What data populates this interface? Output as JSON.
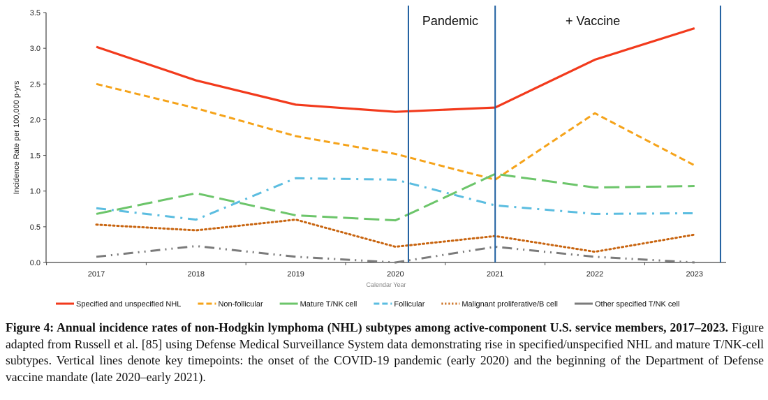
{
  "chart_data": {
    "type": "line",
    "ylabel": "Incidence Rate per 100,000 p-yrs",
    "xlabel": "Calendar Year",
    "ylim": [
      0,
      3.5
    ],
    "yticks": [
      "0.0",
      "0.5",
      "1.0",
      "1.5",
      "2.0",
      "2.5",
      "3.0",
      "3.5"
    ],
    "x": [
      "2017",
      "2018",
      "2019",
      "2020",
      "2021",
      "2022",
      "2023"
    ],
    "legend_position": "bottom",
    "series": [
      {
        "name": "Specified and unspecified NHL",
        "color": "#f23a1c",
        "style": "solid",
        "values": [
          3.02,
          2.55,
          2.21,
          2.11,
          2.17,
          2.84,
          3.28
        ]
      },
      {
        "name": "Non-follicular",
        "color": "#f5a31a",
        "style": "dash",
        "values": [
          2.5,
          2.16,
          1.77,
          1.52,
          1.16,
          2.09,
          1.36
        ]
      },
      {
        "name": "Mature T/NK cell",
        "color": "#6cc56a",
        "style": "longdash",
        "values": [
          0.68,
          0.97,
          0.66,
          0.59,
          1.24,
          1.05,
          1.07
        ]
      },
      {
        "name": "Follicular",
        "color": "#5bbde0",
        "style": "dashdot",
        "values": [
          0.76,
          0.6,
          1.18,
          1.16,
          0.8,
          0.68,
          0.69
        ]
      },
      {
        "name": "Malignant proliferative/B cell",
        "color": "#c8640f",
        "style": "dot",
        "values": [
          0.53,
          0.45,
          0.6,
          0.22,
          0.37,
          0.15,
          0.39
        ]
      },
      {
        "name": "Other specified T/NK cell",
        "color": "#7b7b7b",
        "style": "dashdotdot",
        "values": [
          0.08,
          0.23,
          0.08,
          0.0,
          0.22,
          0.08,
          0.0
        ]
      }
    ],
    "annotations": {
      "vlines": [
        2020.13,
        2021,
        2023.26
      ],
      "vline_color": "#1f5fa0",
      "labels": [
        {
          "text": "Pandemic",
          "x": 2020.55
        },
        {
          "text": "+ Vaccine",
          "x": 2021.98
        }
      ]
    }
  },
  "caption": {
    "bold": "Figure 4: Annual incidence rates of non-Hodgkin lymphoma (NHL) subtypes among active-component U.S. service members, 2017–2023.",
    "text": " Figure adapted from Russell et al. [85] using Defense Medical Surveillance System data demonstrating rise in specified/unspecified NHL and mature T/NK-cell subtypes. Vertical lines denote key timepoints: the onset of the COVID-19 pandemic (early 2020) and the beginning of the Department of Defense vaccine mandate (late 2020–early 2021)."
  }
}
